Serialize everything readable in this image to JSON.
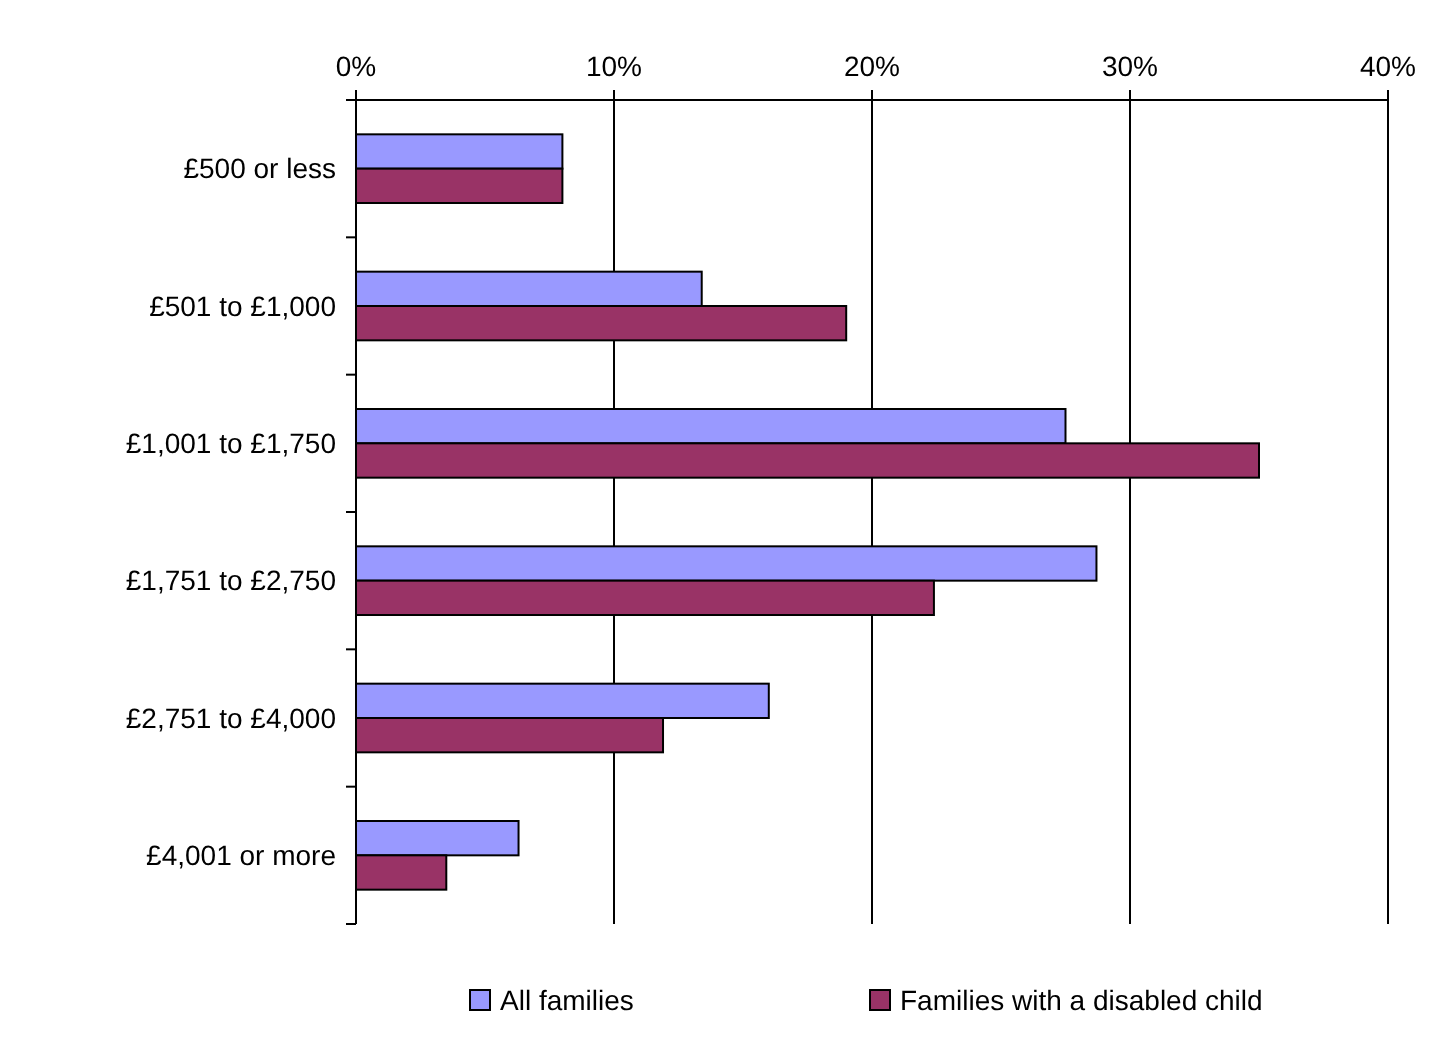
{
  "chart_data": {
    "type": "bar",
    "orientation": "horizontal",
    "categories": [
      "£500 or less",
      "£501 to £1,000",
      "£1,001 to £1,750",
      "£1,751 to £2,750",
      "£2,751 to £4,000",
      "£4,001 or more"
    ],
    "series": [
      {
        "name": "All families",
        "color": "#9999ff",
        "values": [
          8,
          13.4,
          27.5,
          28.7,
          16,
          6.3
        ]
      },
      {
        "name": "Families with a disabled child",
        "color": "#993366",
        "values": [
          8,
          19,
          35,
          22.4,
          11.9,
          3.5
        ]
      }
    ],
    "xlim": [
      0,
      40
    ],
    "xticks": [
      {
        "value": 0,
        "label": "0%"
      },
      {
        "value": 10,
        "label": "10%"
      },
      {
        "value": 20,
        "label": "20%"
      },
      {
        "value": 30,
        "label": "30%"
      },
      {
        "value": 40,
        "label": "40%"
      }
    ],
    "grid": "x",
    "legend": "bottom"
  }
}
